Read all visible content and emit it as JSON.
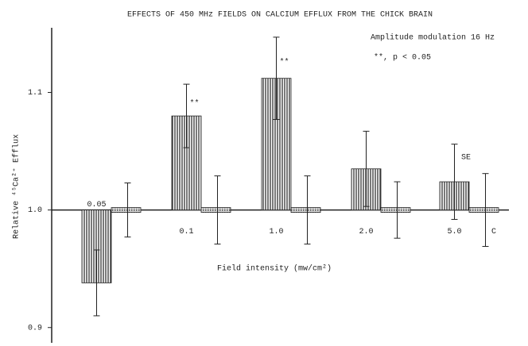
{
  "chart_data": {
    "type": "bar",
    "title": "EFFECTS OF 450 MHz FIELDS ON CALCIUM EFFLUX FROM THE CHICK BRAIN",
    "xlabel": "Field intensity (mw/cm²)",
    "ylabel": "Relative ⁴⁵Ca²⁺ Efflux",
    "legend_note": "Amplitude modulation 16 Hz",
    "significance_note": "**,  p < 0.05",
    "se_label": "SE",
    "control_label": "C",
    "categories": [
      "0.05",
      "0.1",
      "1.0",
      "2.0",
      "5.0"
    ],
    "series": [
      {
        "values": [
          0.938,
          1.08,
          1.112,
          1.035,
          1.024
        ],
        "errors": [
          0.028,
          0.027,
          0.035,
          0.032,
          0.032
        ],
        "color": "#222222",
        "pattern": "vertical"
      },
      {
        "values": [
          1.0,
          1.0,
          1.0,
          1.0,
          1.0
        ],
        "errors": [
          0.023,
          0.029,
          0.029,
          0.024,
          0.031
        ],
        "color": "#555555",
        "pattern": "stipple"
      }
    ],
    "significance": [
      null,
      "**",
      "**",
      null,
      null
    ],
    "baseline": 1,
    "ylim": [
      0.887,
      1.155
    ],
    "yticks": [
      0.9,
      {
        "value": 1,
        "label": "1.0"
      },
      1.1
    ]
  }
}
